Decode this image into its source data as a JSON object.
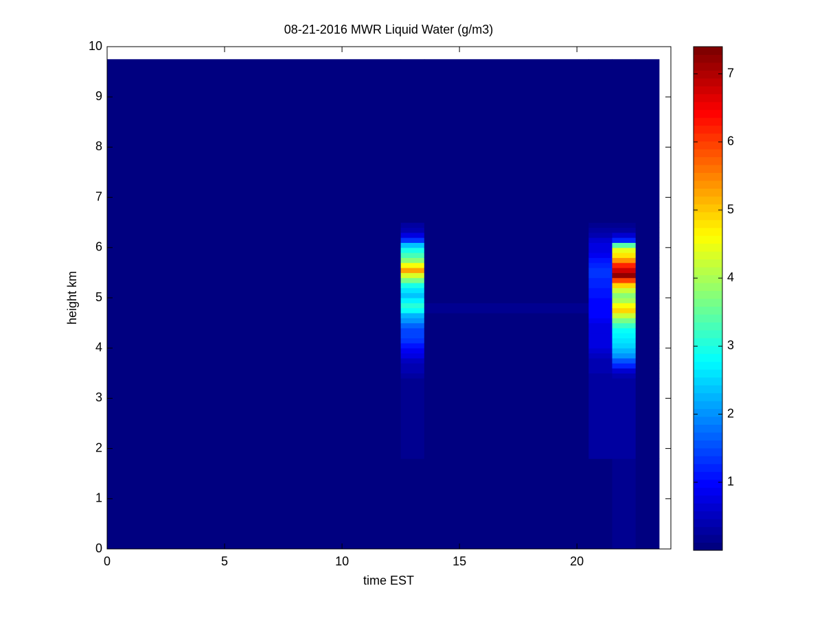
{
  "chart_data": {
    "type": "heatmap",
    "title": "08-21-2016 MWR Liquid Water (g/m3)",
    "x_label": "time EST",
    "y_label": "height km",
    "xlim": [
      0,
      24
    ],
    "xticks": [
      0,
      5,
      10,
      15,
      20
    ],
    "ylim": [
      0,
      10
    ],
    "yticks": [
      0,
      1,
      2,
      3,
      4,
      5,
      6,
      7,
      8,
      9,
      10
    ],
    "colormap": "jet",
    "clim": [
      0,
      7.4
    ],
    "cticks": [
      1,
      2,
      3,
      4,
      5,
      6,
      7
    ],
    "xbins": [
      0,
      12.5,
      13.5,
      20.5,
      21.5,
      22.5,
      23.5
    ],
    "ybins": [
      0,
      1.8,
      3.4,
      3.5,
      3.6,
      3.7,
      3.8,
      3.9,
      4.0,
      4.1,
      4.2,
      4.3,
      4.4,
      4.5,
      4.6,
      4.7,
      4.8,
      4.9,
      5.0,
      5.1,
      5.2,
      5.3,
      5.4,
      5.5,
      5.6,
      5.7,
      5.8,
      5.9,
      6.0,
      6.1,
      6.2,
      6.3,
      6.4,
      6.5,
      9.75
    ],
    "values": [
      [
        0.05,
        0.05,
        0.05,
        0.05,
        0.05,
        0.05,
        0.05,
        0.05,
        0.05,
        0.05,
        0.05,
        0.05,
        0.05,
        0.05,
        0.05,
        0.05,
        0.05,
        0.05,
        0.05,
        0.05,
        0.05,
        0.05,
        0.05,
        0.05,
        0.05,
        0.05,
        0.05,
        0.05,
        0.05,
        0.05,
        0.05,
        0.05,
        0.05,
        0.05
      ],
      [
        0.1,
        0.2,
        0.3,
        0.35,
        0.4,
        0.5,
        0.7,
        0.9,
        1.1,
        1.3,
        1.4,
        1.5,
        1.7,
        2.0,
        2.3,
        2.8,
        3.1,
        2.7,
        2.4,
        2.6,
        3.0,
        3.6,
        4.3,
        5.3,
        4.6,
        3.8,
        3.3,
        3.0,
        2.4,
        1.3,
        0.7,
        0.4,
        0.3,
        0.05
      ],
      [
        0.05,
        0.05,
        0.05,
        0.05,
        0.05,
        0.05,
        0.05,
        0.05,
        0.05,
        0.05,
        0.05,
        0.05,
        0.05,
        0.05,
        0.05,
        0.2,
        0.2,
        0.05,
        0.05,
        0.05,
        0.05,
        0.05,
        0.05,
        0.05,
        0.05,
        0.05,
        0.05,
        0.05,
        0.05,
        0.05,
        0.05,
        0.05,
        0.05,
        0.05
      ],
      [
        0.1,
        0.25,
        0.3,
        0.35,
        0.4,
        0.45,
        0.5,
        0.6,
        0.7,
        0.7,
        0.75,
        0.8,
        0.8,
        0.9,
        0.95,
        1.0,
        1.0,
        1.0,
        1.1,
        1.1,
        1.2,
        1.2,
        1.3,
        1.3,
        1.2,
        1.1,
        0.9,
        0.8,
        0.7,
        0.6,
        0.4,
        0.3,
        0.2,
        0.05
      ],
      [
        0.15,
        0.3,
        0.4,
        0.6,
        1.2,
        1.6,
        2.0,
        2.3,
        2.5,
        2.6,
        2.7,
        2.8,
        3.2,
        3.6,
        4.2,
        4.9,
        4.6,
        4.0,
        3.8,
        4.2,
        4.9,
        6.0,
        7.2,
        6.8,
        6.2,
        5.4,
        4.8,
        4.4,
        3.4,
        1.2,
        0.6,
        0.3,
        0.2,
        0.05
      ],
      [
        0.05,
        0.05,
        0.05,
        0.05,
        0.05,
        0.05,
        0.05,
        0.05,
        0.05,
        0.05,
        0.05,
        0.05,
        0.05,
        0.05,
        0.05,
        0.05,
        0.05,
        0.05,
        0.05,
        0.05,
        0.05,
        0.05,
        0.05,
        0.05,
        0.05,
        0.05,
        0.05,
        0.05,
        0.05,
        0.05,
        0.05,
        0.05,
        0.05,
        0.05
      ]
    ]
  }
}
